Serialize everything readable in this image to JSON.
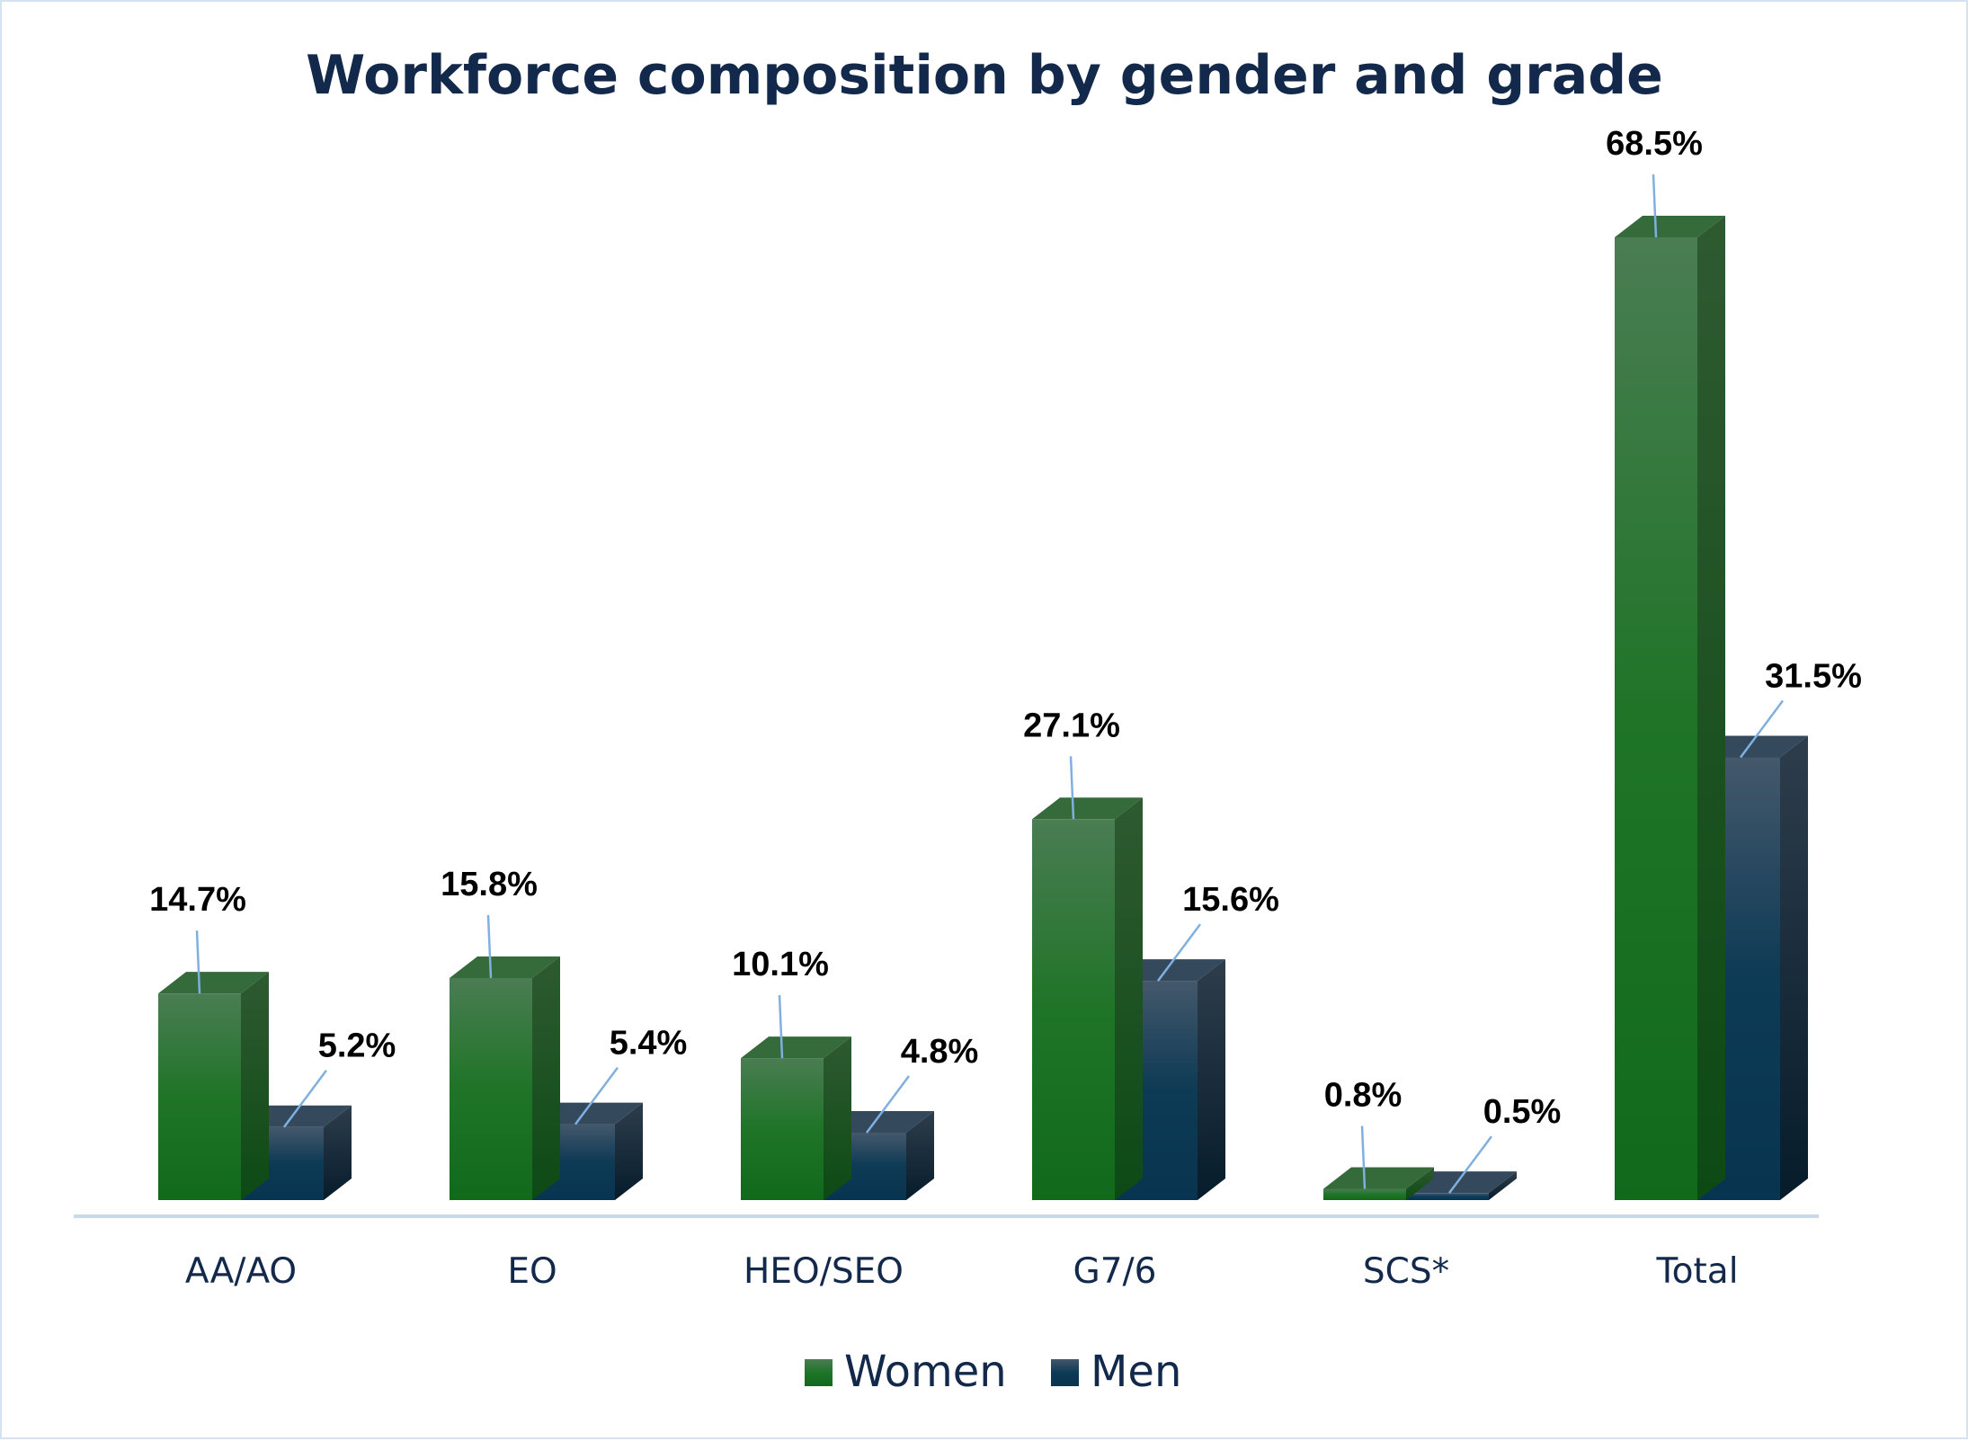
{
  "chart_data": {
    "type": "bar",
    "title": "Workforce composition by gender and grade",
    "categories": [
      "AA/AO",
      "EO",
      "HEO/SEO",
      "G7/6",
      "SCS*",
      "Total"
    ],
    "series": [
      {
        "name": "Women",
        "values": [
          14.7,
          15.8,
          10.1,
          27.1,
          0.8,
          68.5
        ],
        "labels": [
          "14.7%",
          "15.8%",
          "10.1%",
          "27.1%",
          "0.8%",
          "68.5%"
        ],
        "color": "#146b1f"
      },
      {
        "name": "Men",
        "values": [
          5.2,
          5.4,
          4.8,
          15.6,
          0.5,
          31.5
        ],
        "labels": [
          "5.2%",
          "5.4%",
          "4.8%",
          "15.6%",
          "0.5%",
          "31.5%"
        ],
        "color": "#0b3550"
      }
    ],
    "xlabel": "",
    "ylabel": "",
    "ylim": [
      0,
      70
    ],
    "unit": "%",
    "grid": false,
    "style": "3d-column",
    "legend": "bottom",
    "leader_line_color": "#7fb0e0"
  }
}
